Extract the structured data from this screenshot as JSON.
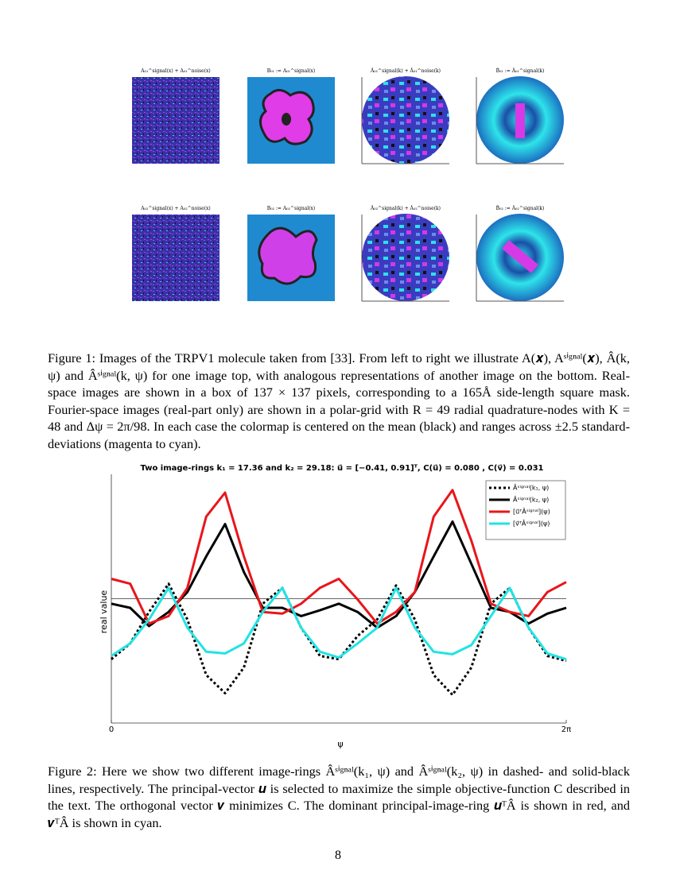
{
  "figure1": {
    "panels": [
      "A₀₁^signal(x) + A₀₁^noise(x)",
      "B₀₁ := A₀₁^signal(x)",
      "Â₀₁^signal(k) + Â₀₁^noise(k)",
      "B̂₀₁ := Â₀₁^signal(k)",
      "A₀₂^signal(x) + A₀₂^noise(x)",
      "B₀₂ := A₀₂^signal(x)",
      "Â₀₂^signal(k) + Â₀₂^noise(k)",
      "B̂₀₂ := Â₀₂^signal(k)"
    ],
    "caption": "Figure 1: Images of the TRPV1 molecule taken from [33]. From left to right we illustrate A(𝒙), Aˢⁱᵍⁿᵃˡ(𝒙), Â(k, ψ) and Âˢⁱᵍⁿᵃˡ(k, ψ) for one image top, with analogous representations of another image on the bottom. Real-space images are shown in a box of 137 × 137 pixels, corresponding to a 165Å side-length square mask. Fourier-space images (real-part only) are shown in a polar-grid with R = 49 radial quadrature-nodes with K = 48 and Δψ = 2π/98. In each case the colormap is centered on the mean (black) and ranges across ±2.5 standard-deviations (magenta to cyan)."
  },
  "chart_data": {
    "type": "line",
    "title": "Two image-rings k₁ = 17.36 and k₂ = 29.18: u⃗ = [−0.41, 0.91]ᵀ, C(u⃗) = 0.080 , C(v⃗) = 0.031",
    "x_label": "ψ",
    "y_label": "real value",
    "x": [
      0,
      0.26,
      0.52,
      0.79,
      1.05,
      1.31,
      1.57,
      1.83,
      2.09,
      2.36,
      2.62,
      2.88,
      3.14,
      3.4,
      3.67,
      3.93,
      4.19,
      4.45,
      4.71,
      4.97,
      5.24,
      5.5,
      5.76,
      6.02,
      6.28
    ],
    "xlim": [
      0,
      6.28
    ],
    "xticks": [
      0,
      {
        "value": 6.28,
        "label": "2π"
      }
    ],
    "ylim": [
      -1.5,
      1.5
    ],
    "hline": 0,
    "legend": "upper right",
    "series": [
      {
        "name": "Âˢⁱᵍⁿᵃˡ(k₁, ψ)",
        "color": "#000000",
        "linestyle": "dotted",
        "values": [
          -0.73,
          -0.54,
          -0.16,
          0.18,
          -0.25,
          -0.92,
          -1.14,
          -0.83,
          -0.06,
          0.13,
          -0.35,
          -0.69,
          -0.73,
          -0.45,
          -0.25,
          0.16,
          -0.25,
          -0.92,
          -1.16,
          -0.83,
          -0.06,
          0.13,
          -0.35,
          -0.69,
          -0.75
        ]
      },
      {
        "name": "Âˢⁱᵍⁿᵃˡ(k₂, ψ)",
        "color": "#000000",
        "linestyle": "solid",
        "values": [
          -0.06,
          -0.11,
          -0.33,
          -0.16,
          0.08,
          0.51,
          0.9,
          0.32,
          -0.11,
          -0.11,
          -0.21,
          -0.14,
          -0.06,
          -0.16,
          -0.35,
          -0.21,
          0.08,
          0.51,
          0.93,
          0.42,
          -0.11,
          -0.16,
          -0.3,
          -0.18,
          -0.11
        ]
      },
      {
        "name": "[u⃗ᵀÂˢⁱᵍⁿᵃˡ](ψ)",
        "color": "#e8161b",
        "linestyle": "solid",
        "values": [
          0.24,
          0.18,
          -0.3,
          -0.21,
          0.13,
          0.99,
          1.28,
          0.51,
          -0.16,
          -0.18,
          -0.06,
          0.13,
          0.24,
          -0.01,
          -0.3,
          -0.16,
          0.08,
          0.99,
          1.31,
          0.7,
          -0.06,
          -0.16,
          -0.21,
          0.08,
          0.2
        ]
      },
      {
        "name": "[v⃗ᵀÂˢⁱᵍⁿᵃˡ](ψ)",
        "color": "#22e3e3",
        "linestyle": "solid",
        "values": [
          -0.69,
          -0.54,
          -0.25,
          0.13,
          -0.35,
          -0.64,
          -0.66,
          -0.54,
          -0.16,
          0.13,
          -0.35,
          -0.64,
          -0.71,
          -0.54,
          -0.35,
          0.13,
          -0.35,
          -0.64,
          -0.67,
          -0.56,
          -0.21,
          0.13,
          -0.35,
          -0.66,
          -0.73
        ]
      }
    ]
  },
  "figure2_caption": "Figure 2: Here we show two different image-rings Âˢⁱᵍⁿᵃˡ(k₁, ψ) and Âˢⁱᵍⁿᵃˡ(k₂, ψ) in dashed- and solid-black lines, respectively. The principal-vector 𝒖 is selected to maximize the simple objective-function C described in the text. The orthogonal vector 𝒗 minimizes C. The dominant principal-image-ring 𝒖ᵀÂ is shown in red, and 𝒗ᵀÂ is shown in cyan.",
  "page_number": "8"
}
